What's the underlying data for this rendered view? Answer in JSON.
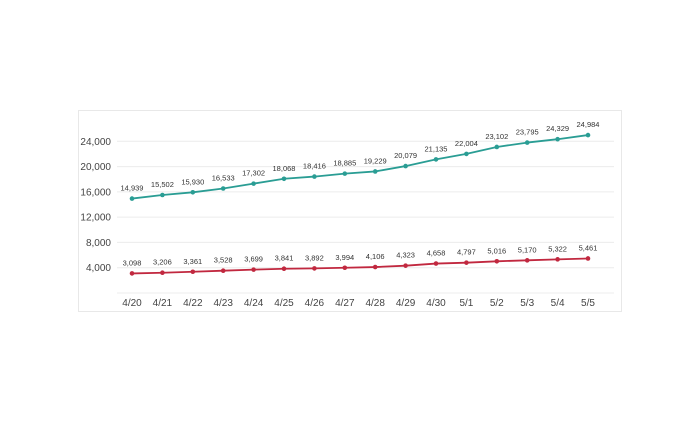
{
  "chart_data": {
    "type": "line",
    "categories": [
      "4/20",
      "4/21",
      "4/22",
      "4/23",
      "4/24",
      "4/25",
      "4/26",
      "4/27",
      "4/28",
      "4/29",
      "4/30",
      "5/1",
      "5/2",
      "5/3",
      "5/4",
      "5/5"
    ],
    "series": [
      {
        "values": [
          14939,
          15502,
          15930,
          16533,
          17302,
          18068,
          18416,
          18885,
          19229,
          20079,
          21135,
          22004,
          23102,
          23795,
          24329,
          24984
        ],
        "color": "#2a9d94"
      },
      {
        "values": [
          3098,
          3206,
          3361,
          3528,
          3699,
          3841,
          3892,
          3994,
          4106,
          4323,
          4658,
          4797,
          5016,
          5170,
          5322,
          5461
        ],
        "color": "#c1283f"
      }
    ],
    "data_labels": [
      [
        "14,939",
        "15,502",
        "15,930",
        "16,533",
        "17,302",
        "18,068",
        "18,416",
        "18,885",
        "19,229",
        "20,079",
        "21,135",
        "22,004",
        "23,102",
        "23,795",
        "24,329",
        "24,984"
      ],
      [
        "3,098",
        "3,206",
        "3,361",
        "3,528",
        "3,699",
        "3,841",
        "3,892",
        "3,994",
        "4,106",
        "4,323",
        "4,658",
        "4,797",
        "5,016",
        "5,170",
        "5,322",
        "5,461"
      ]
    ],
    "y_ticks": [
      4000,
      8000,
      12000,
      16000,
      20000,
      24000
    ],
    "y_tick_labels": [
      "4,000",
      "8,000",
      "12,000",
      "16,000",
      "20,000",
      "24,000"
    ],
    "ylim": [
      0,
      28000
    ],
    "grid": true,
    "legend": "none",
    "title": "",
    "xlabel": "",
    "ylabel": ""
  }
}
